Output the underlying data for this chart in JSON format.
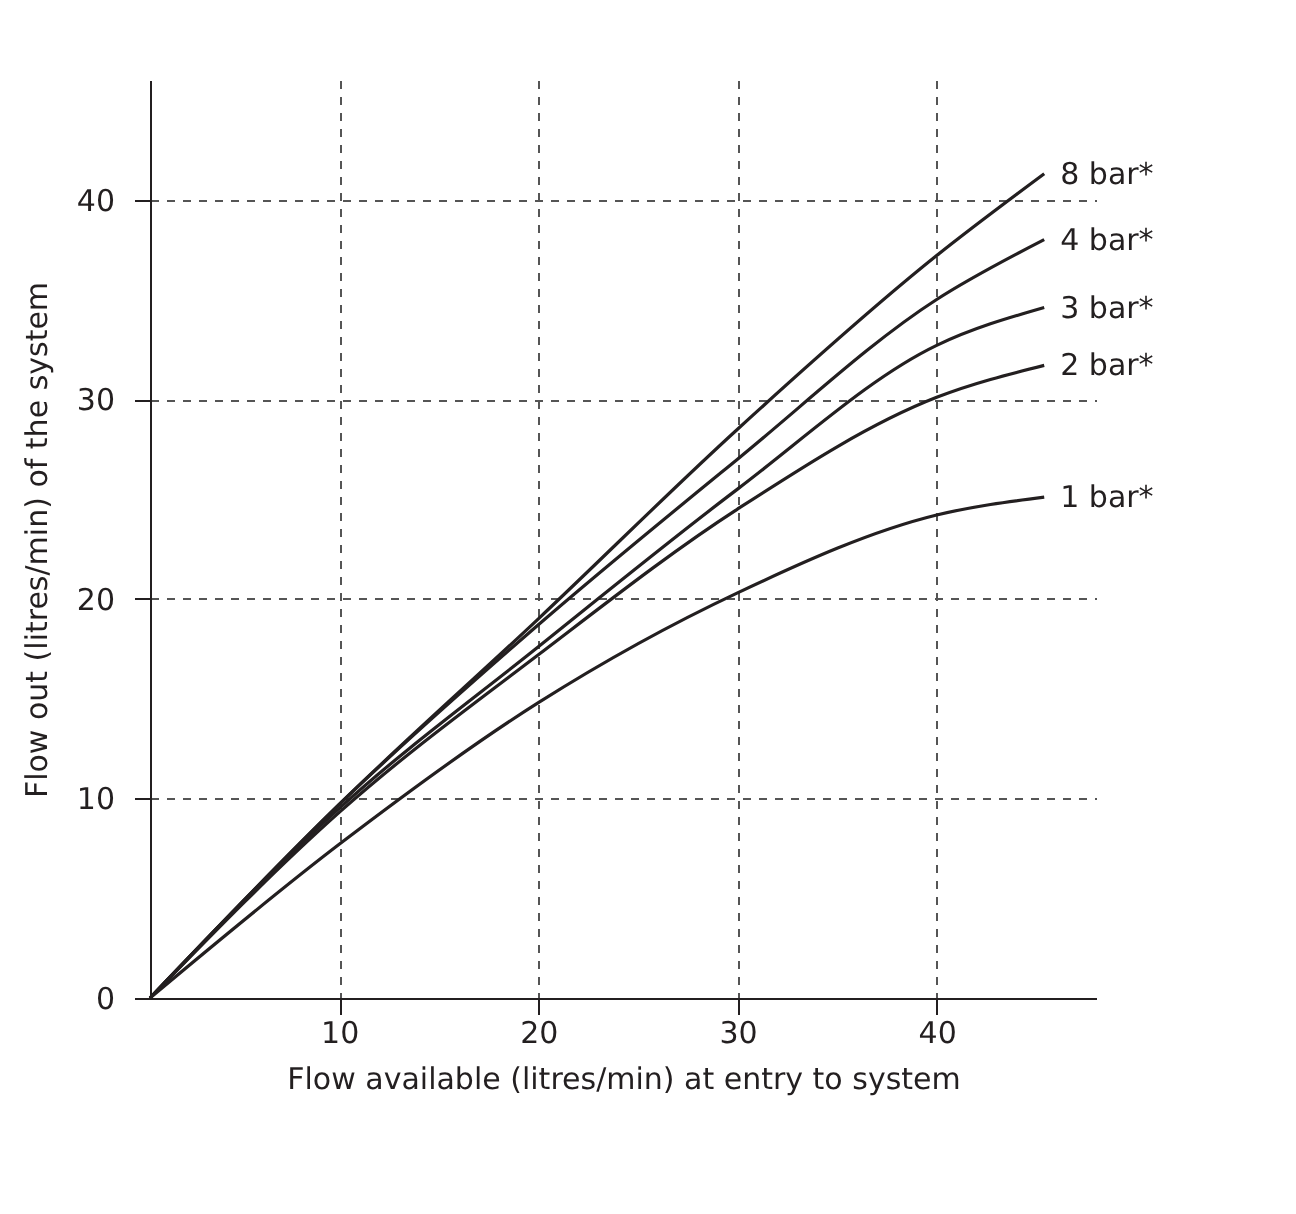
{
  "chart_data": {
    "type": "line",
    "xlabel": "Flow available (litres/min) at entry to system",
    "ylabel": "Flow out (litres/min) of the system",
    "xlim": [
      0.5,
      48
    ],
    "xticks": [
      10,
      20,
      30,
      40
    ],
    "ylim": [
      0,
      46
    ],
    "yticks": [
      0,
      10,
      20,
      30,
      40
    ],
    "grid": true,
    "legend": false,
    "x": [
      0.5,
      10,
      20,
      30,
      40,
      45.4
    ],
    "series": [
      {
        "name": "8 bar*",
        "color": "#231f20",
        "values": [
          0,
          9.7,
          19.0,
          28.5,
          37.2,
          41.3
        ]
      },
      {
        "name": "4 bar*",
        "color": "#231f20",
        "values": [
          0,
          9.7,
          18.7,
          27.0,
          35.0,
          38.0
        ]
      },
      {
        "name": "3 bar*",
        "color": "#231f20",
        "values": [
          0,
          9.5,
          17.6,
          25.5,
          32.7,
          34.6
        ]
      },
      {
        "name": "2 bar*",
        "color": "#231f20",
        "values": [
          0,
          9.3,
          17.2,
          24.5,
          30.1,
          31.7
        ]
      },
      {
        "name": "1 bar*",
        "color": "#231f20",
        "values": [
          0,
          7.7,
          14.8,
          20.3,
          24.2,
          25.1
        ]
      }
    ]
  }
}
